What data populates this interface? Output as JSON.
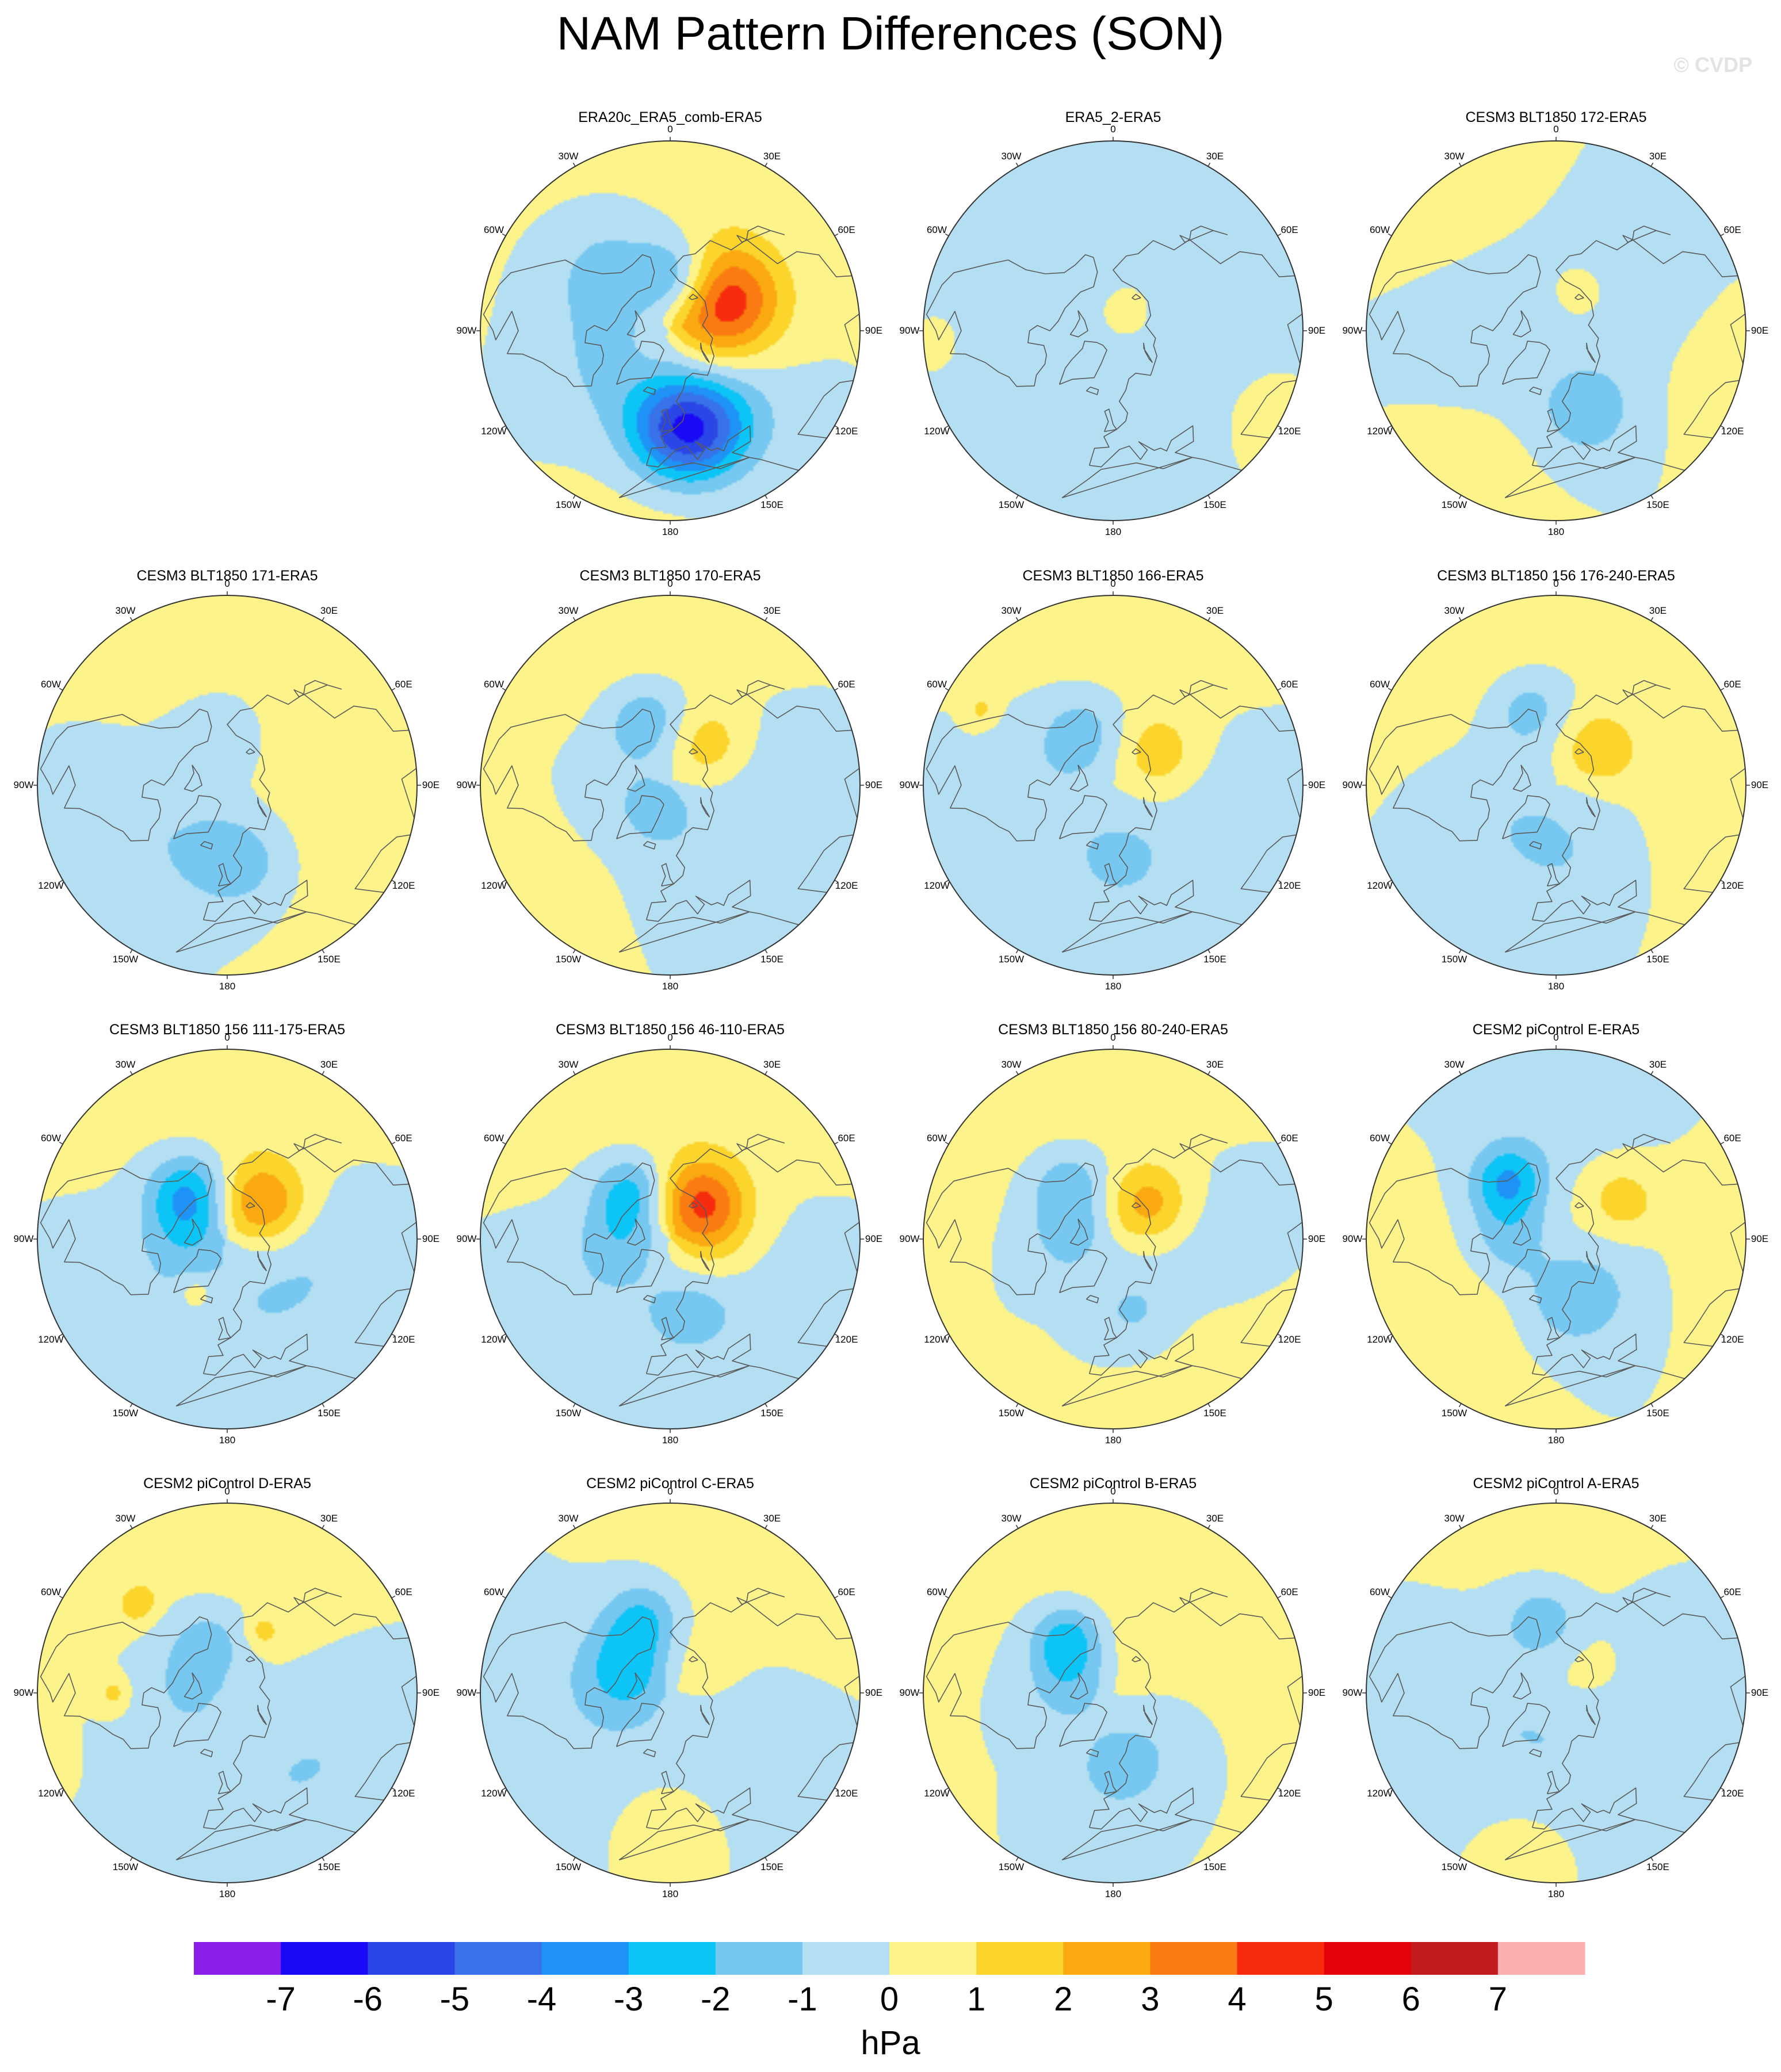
{
  "figure": {
    "title": "NAM Pattern Differences (SON)",
    "credit": "© CVDP",
    "units": "hPa"
  },
  "longitude_labels": [
    "180",
    "150E",
    "120E",
    "90E",
    "60E",
    "30E",
    "0",
    "30W",
    "60W",
    "90W",
    "120W",
    "150W"
  ],
  "colorbar": {
    "ticks": [
      "-7",
      "-6",
      "-5",
      "-4",
      "-3",
      "-2",
      "-1",
      "0",
      "1",
      "2",
      "3",
      "4",
      "5",
      "6",
      "7"
    ],
    "colors": [
      "#8a1de8",
      "#1a09f5",
      "#2b46e6",
      "#3872e8",
      "#1e93f5",
      "#0dc4f7",
      "#76c8f0",
      "#b4dff3",
      "#fcf38b",
      "#fbd52c",
      "#faa910",
      "#f97b12",
      "#f72b0d",
      "#e3020b",
      "#c21b1e",
      "#fdb0b0"
    ]
  },
  "chart_data": {
    "type": "contour-map",
    "projection": "north-polar-stereographic",
    "variable": "NAM pattern sea level pressure difference",
    "units": "hPa",
    "levels": [
      -7,
      -6,
      -5,
      -4,
      -3,
      -2,
      -1,
      0,
      1,
      2,
      3,
      4,
      5,
      6,
      7
    ],
    "panels": [
      {
        "title": "ERA20c_ERA5_comb-ERA5",
        "features": [
          {
            "lon": 170,
            "lat": 50,
            "value": -5.5,
            "spread": 14
          },
          {
            "lon": 150,
            "lat": 58,
            "value": -1.5,
            "spread": 22
          },
          {
            "lon": 60,
            "lat": 65,
            "value": 3.8,
            "spread": 15
          },
          {
            "lon": 90,
            "lat": 75,
            "value": 1.5,
            "spread": 20
          },
          {
            "lon": 10,
            "lat": 70,
            "value": -2.8,
            "spread": 11
          },
          {
            "lon": -45,
            "lat": 55,
            "value": -1.5,
            "spread": 18
          },
          {
            "lon": -120,
            "lat": 60,
            "value": -1,
            "spread": 18
          },
          {
            "lon": 0,
            "lat": 20,
            "value": 0.5,
            "spread": 40
          },
          {
            "lon": 180,
            "lat": 25,
            "value": 0.5,
            "spread": 20
          }
        ]
      },
      {
        "title": "ERA5_2-ERA5",
        "features": [
          {
            "lon": -100,
            "lat": 55,
            "value": -0.6,
            "spread": 30
          },
          {
            "lon": 60,
            "lat": 40,
            "value": -0.6,
            "spread": 30
          },
          {
            "lon": -30,
            "lat": 25,
            "value": -0.6,
            "spread": 30
          },
          {
            "lon": 150,
            "lat": 50,
            "value": -0.6,
            "spread": 25
          },
          {
            "lon": 30,
            "lat": 80,
            "value": 0.6,
            "spread": 12
          },
          {
            "lon": -90,
            "lat": 30,
            "value": 0.5,
            "spread": 18
          },
          {
            "lon": 120,
            "lat": 30,
            "value": 0.5,
            "spread": 18
          }
        ]
      },
      {
        "title": "CESM3 BLT1850 172-ERA5",
        "features": [
          {
            "lon": 160,
            "lat": 55,
            "value": -1.5,
            "spread": 14
          },
          {
            "lon": -80,
            "lat": 65,
            "value": -0.8,
            "spread": 25
          },
          {
            "lon": 60,
            "lat": 55,
            "value": -0.8,
            "spread": 25
          },
          {
            "lon": 30,
            "lat": 72,
            "value": 1.3,
            "spread": 8
          },
          {
            "lon": -40,
            "lat": 30,
            "value": 0.6,
            "spread": 22
          },
          {
            "lon": 100,
            "lat": 25,
            "value": 0.6,
            "spread": 18
          },
          {
            "lon": -150,
            "lat": 30,
            "value": 0.5,
            "spread": 18
          }
        ]
      },
      {
        "title": "CESM3 BLT1850 171-ERA5",
        "features": [
          {
            "lon": 170,
            "lat": 60,
            "value": -1.6,
            "spread": 14
          },
          {
            "lon": -130,
            "lat": 55,
            "value": -0.8,
            "spread": 20
          },
          {
            "lon": 0,
            "lat": 70,
            "value": -0.8,
            "spread": 20
          },
          {
            "lon": -90,
            "lat": 35,
            "value": -0.6,
            "spread": 15
          },
          {
            "lon": 60,
            "lat": 60,
            "value": 0.6,
            "spread": 25
          },
          {
            "lon": -20,
            "lat": 25,
            "value": 0.6,
            "spread": 30
          },
          {
            "lon": 120,
            "lat": 30,
            "value": 0.5,
            "spread": 25
          }
        ]
      },
      {
        "title": "CESM3 BLT1850 170-ERA5",
        "features": [
          {
            "lon": 45,
            "lat": 68,
            "value": 1.6,
            "spread": 11
          },
          {
            "lon": -20,
            "lat": 62,
            "value": -1.8,
            "spread": 11
          },
          {
            "lon": -100,
            "lat": 70,
            "value": -0.8,
            "spread": 18
          },
          {
            "lon": 160,
            "lat": 55,
            "value": -0.8,
            "spread": 22
          },
          {
            "lon": -150,
            "lat": 80,
            "value": -1.1,
            "spread": 8
          },
          {
            "lon": 90,
            "lat": 50,
            "value": -0.6,
            "spread": 20
          },
          {
            "lon": -10,
            "lat": 25,
            "value": 0.6,
            "spread": 30
          },
          {
            "lon": -130,
            "lat": 35,
            "value": 0.5,
            "spread": 25
          }
        ]
      },
      {
        "title": "CESM3 BLT1850 166-ERA5",
        "features": [
          {
            "lon": 55,
            "lat": 68,
            "value": 1.6,
            "spread": 11
          },
          {
            "lon": -30,
            "lat": 65,
            "value": -1.5,
            "spread": 12
          },
          {
            "lon": 175,
            "lat": 60,
            "value": -1.3,
            "spread": 12
          },
          {
            "lon": -100,
            "lat": 60,
            "value": -0.7,
            "spread": 20
          },
          {
            "lon": 110,
            "lat": 45,
            "value": -0.6,
            "spread": 20
          },
          {
            "lon": -60,
            "lat": 30,
            "value": 1.2,
            "spread": 4
          },
          {
            "lon": 0,
            "lat": 30,
            "value": 0.6,
            "spread": 25
          }
        ]
      },
      {
        "title": "CESM3 BLT1850 156 176-240-ERA5",
        "features": [
          {
            "lon": 50,
            "lat": 68,
            "value": 1.7,
            "spread": 11
          },
          {
            "lon": -20,
            "lat": 58,
            "value": -1.6,
            "spread": 11
          },
          {
            "lon": -120,
            "lat": 65,
            "value": -0.8,
            "spread": 22
          },
          {
            "lon": 160,
            "lat": 60,
            "value": -0.8,
            "spread": 20
          },
          {
            "lon": -30,
            "lat": 25,
            "value": 0.6,
            "spread": 30
          },
          {
            "lon": 100,
            "lat": 30,
            "value": 0.6,
            "spread": 25
          }
        ]
      },
      {
        "title": "CESM3 BLT1850 156 111-175-ERA5",
        "features": [
          {
            "lon": 45,
            "lat": 70,
            "value": 3.0,
            "spread": 12
          },
          {
            "lon": -40,
            "lat": 65,
            "value": -2.8,
            "spread": 11
          },
          {
            "lon": -80,
            "lat": 75,
            "value": -1.5,
            "spread": 12
          },
          {
            "lon": 160,
            "lat": 60,
            "value": -0.8,
            "spread": 22
          },
          {
            "lon": 100,
            "lat": 50,
            "value": -0.7,
            "spread": 20
          },
          {
            "lon": -120,
            "lat": 50,
            "value": -0.6,
            "spread": 20
          },
          {
            "lon": -150,
            "lat": 65,
            "value": 1.3,
            "spread": 5
          },
          {
            "lon": 0,
            "lat": 30,
            "value": 0.6,
            "spread": 30
          }
        ]
      },
      {
        "title": "CESM3 BLT1850 156 46-110-ERA5",
        "features": [
          {
            "lon": 40,
            "lat": 70,
            "value": 3.5,
            "spread": 12
          },
          {
            "lon": 90,
            "lat": 75,
            "value": 1.2,
            "spread": 14
          },
          {
            "lon": -40,
            "lat": 65,
            "value": -2.3,
            "spread": 10
          },
          {
            "lon": -90,
            "lat": 70,
            "value": -1.5,
            "spread": 12
          },
          {
            "lon": 165,
            "lat": 60,
            "value": -1.4,
            "spread": 12
          },
          {
            "lon": -130,
            "lat": 50,
            "value": -0.6,
            "spread": 20
          },
          {
            "lon": 120,
            "lat": 45,
            "value": -0.5,
            "spread": 20
          },
          {
            "lon": 0,
            "lat": 30,
            "value": 0.6,
            "spread": 30
          }
        ]
      },
      {
        "title": "CESM3 BLT1850 156 80-240-ERA5",
        "features": [
          {
            "lon": 45,
            "lat": 70,
            "value": 2.4,
            "spread": 11
          },
          {
            "lon": -40,
            "lat": 62,
            "value": -1.8,
            "spread": 11
          },
          {
            "lon": -90,
            "lat": 72,
            "value": -1.3,
            "spread": 12
          },
          {
            "lon": 165,
            "lat": 60,
            "value": -1.2,
            "spread": 12
          },
          {
            "lon": 100,
            "lat": 50,
            "value": -0.6,
            "spread": 20
          },
          {
            "lon": -20,
            "lat": 25,
            "value": 0.6,
            "spread": 30
          },
          {
            "lon": 140,
            "lat": 30,
            "value": 0.5,
            "spread": 25
          }
        ]
      },
      {
        "title": "CESM2 piControl E-ERA5",
        "features": [
          {
            "lon": -40,
            "lat": 60,
            "value": -3.0,
            "spread": 10
          },
          {
            "lon": -90,
            "lat": 72,
            "value": -1.6,
            "spread": 12
          },
          {
            "lon": 170,
            "lat": 65,
            "value": -1.4,
            "spread": 12
          },
          {
            "lon": 60,
            "lat": 60,
            "value": 1.6,
            "spread": 10
          },
          {
            "lon": 130,
            "lat": 60,
            "value": -0.8,
            "spread": 18
          },
          {
            "lon": 0,
            "lat": 35,
            "value": -0.6,
            "spread": 20
          },
          {
            "lon": -120,
            "lat": 35,
            "value": 0.6,
            "spread": 25
          },
          {
            "lon": 100,
            "lat": 30,
            "value": 0.5,
            "spread": 20
          }
        ]
      },
      {
        "title": "CESM2 piControl D-ERA5",
        "features": [
          {
            "lon": -20,
            "lat": 68,
            "value": -1.5,
            "spread": 12
          },
          {
            "lon": -90,
            "lat": 75,
            "value": -1.1,
            "spread": 14
          },
          {
            "lon": -45,
            "lat": 40,
            "value": 1.6,
            "spread": 5
          },
          {
            "lon": -90,
            "lat": 45,
            "value": 1.4,
            "spread": 4
          },
          {
            "lon": 30,
            "lat": 62,
            "value": 1.3,
            "spread": 5
          },
          {
            "lon": 150,
            "lat": 50,
            "value": -0.8,
            "spread": 20
          },
          {
            "lon": 110,
            "lat": 35,
            "value": -0.6,
            "spread": 20
          },
          {
            "lon": 0,
            "lat": 30,
            "value": 0.6,
            "spread": 30
          }
        ]
      },
      {
        "title": "CESM2 piControl C-ERA5",
        "features": [
          {
            "lon": -60,
            "lat": 70,
            "value": -2.2,
            "spread": 12
          },
          {
            "lon": -20,
            "lat": 58,
            "value": -2.0,
            "spread": 10
          },
          {
            "lon": -110,
            "lat": 60,
            "value": -0.8,
            "spread": 25
          },
          {
            "lon": 130,
            "lat": 60,
            "value": -0.7,
            "spread": 22
          },
          {
            "lon": 60,
            "lat": 75,
            "value": 0.6,
            "spread": 12
          },
          {
            "lon": 180,
            "lat": 45,
            "value": 0.6,
            "spread": 15
          },
          {
            "lon": 30,
            "lat": 30,
            "value": 0.6,
            "spread": 25
          }
        ]
      },
      {
        "title": "CESM2 piControl B-ERA5",
        "features": [
          {
            "lon": -40,
            "lat": 62,
            "value": -2.6,
            "spread": 10
          },
          {
            "lon": -80,
            "lat": 72,
            "value": -1.5,
            "spread": 12
          },
          {
            "lon": 175,
            "lat": 60,
            "value": -1.6,
            "spread": 12
          },
          {
            "lon": 120,
            "lat": 65,
            "value": -0.6,
            "spread": 15
          },
          {
            "lon": 60,
            "lat": 55,
            "value": 0.6,
            "spread": 25
          },
          {
            "lon": 0,
            "lat": 30,
            "value": 0.6,
            "spread": 30
          }
        ]
      },
      {
        "title": "CESM2 piControl A-ERA5",
        "features": [
          {
            "lon": -10,
            "lat": 60,
            "value": -1.6,
            "spread": 11
          },
          {
            "lon": -110,
            "lat": 60,
            "value": -0.8,
            "spread": 25
          },
          {
            "lon": 150,
            "lat": 60,
            "value": -0.8,
            "spread": 25
          },
          {
            "lon": 60,
            "lat": 40,
            "value": -0.6,
            "spread": 20
          },
          {
            "lon": 60,
            "lat": 72,
            "value": 0.6,
            "spread": 12
          },
          {
            "lon": -170,
            "lat": 35,
            "value": 0.5,
            "spread": 15
          },
          {
            "lon": 10,
            "lat": 25,
            "value": 0.6,
            "spread": 25
          }
        ]
      }
    ]
  }
}
